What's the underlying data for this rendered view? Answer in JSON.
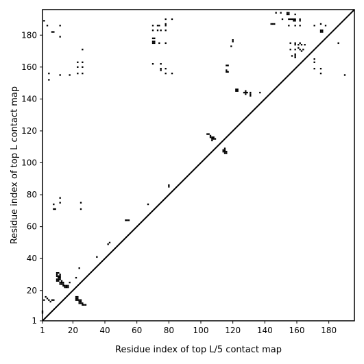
{
  "chart_data": {
    "type": "scatter",
    "title": "",
    "xlabel": "Residue index of top L/5 contact map",
    "ylabel": "Residue index of top L contact map",
    "xlim": [
      1,
      196
    ],
    "ylim": [
      1,
      196
    ],
    "xticks": [
      1,
      20,
      40,
      60,
      80,
      100,
      120,
      140,
      160,
      180
    ],
    "yticks": [
      1,
      20,
      40,
      60,
      80,
      100,
      120,
      140,
      160,
      180
    ],
    "grid": false,
    "diagonal": true,
    "series": [
      {
        "region": "top L/5 contacts (below diagonal)",
        "points": [
          [
            1,
            6
          ],
          [
            1,
            7
          ],
          [
            2,
            14
          ],
          [
            3,
            16
          ],
          [
            4,
            15
          ],
          [
            5,
            14
          ],
          [
            6,
            13
          ],
          [
            7,
            14
          ],
          [
            8,
            14
          ],
          [
            10,
            31
          ],
          [
            10,
            30
          ],
          [
            11,
            31
          ],
          [
            10,
            29
          ],
          [
            11,
            29
          ],
          [
            11,
            28
          ],
          [
            11,
            27
          ],
          [
            10,
            27
          ],
          [
            10,
            26
          ],
          [
            11,
            26
          ],
          [
            12,
            30
          ],
          [
            12,
            29
          ],
          [
            12,
            28
          ],
          [
            12,
            27
          ],
          [
            13,
            26
          ],
          [
            13,
            25
          ],
          [
            12,
            25
          ],
          [
            13,
            24
          ],
          [
            12,
            24
          ],
          [
            14,
            24
          ],
          [
            14,
            25
          ],
          [
            14,
            23
          ],
          [
            15,
            23
          ],
          [
            15,
            22
          ],
          [
            16,
            22
          ],
          [
            16,
            23
          ],
          [
            17,
            22
          ],
          [
            17,
            23
          ],
          [
            18,
            25
          ],
          [
            22,
            28
          ],
          [
            22,
            16
          ],
          [
            22,
            15
          ],
          [
            22,
            14
          ],
          [
            23,
            15
          ],
          [
            23,
            14
          ],
          [
            23,
            16
          ],
          [
            24,
            14
          ],
          [
            24,
            13
          ],
          [
            24,
            12
          ],
          [
            25,
            14
          ],
          [
            25,
            13
          ],
          [
            25,
            12
          ],
          [
            26,
            12
          ],
          [
            26,
            11
          ],
          [
            27,
            11
          ],
          [
            28,
            11
          ],
          [
            24,
            34
          ],
          [
            35,
            41
          ],
          [
            42,
            49
          ],
          [
            43,
            50
          ],
          [
            53,
            64
          ],
          [
            54,
            64
          ],
          [
            55,
            64
          ],
          [
            67,
            74
          ],
          [
            80,
            85
          ],
          [
            80,
            86
          ],
          [
            104,
            118
          ],
          [
            105,
            118
          ],
          [
            106,
            117
          ],
          [
            106,
            116
          ],
          [
            107,
            116
          ],
          [
            107,
            115
          ],
          [
            108,
            115
          ],
          [
            107,
            114
          ],
          [
            108,
            116
          ],
          [
            109,
            115
          ],
          [
            114,
            107
          ],
          [
            114,
            108
          ],
          [
            115,
            107
          ],
          [
            115,
            108
          ],
          [
            115,
            106
          ],
          [
            116,
            106
          ],
          [
            116,
            107
          ],
          [
            115,
            109
          ],
          [
            122,
            145
          ],
          [
            122,
            146
          ],
          [
            123,
            146
          ],
          [
            123,
            145
          ],
          [
            127,
            144
          ],
          [
            128,
            145
          ],
          [
            128,
            144
          ],
          [
            128,
            143
          ],
          [
            129,
            144
          ],
          [
            131,
            142
          ],
          [
            131,
            143
          ],
          [
            131,
            144
          ],
          [
            137,
            144
          ]
        ]
      },
      {
        "region": "top L contacts (above diagonal)",
        "points": [
          [
            2,
            189
          ],
          [
            4,
            186
          ],
          [
            7,
            182
          ],
          [
            8,
            182
          ],
          [
            5,
            156
          ],
          [
            5,
            152
          ],
          [
            12,
            186
          ],
          [
            12,
            179
          ],
          [
            12,
            155
          ],
          [
            18,
            155
          ],
          [
            8,
            74
          ],
          [
            8,
            71
          ],
          [
            9,
            71
          ],
          [
            12,
            78
          ],
          [
            12,
            75
          ],
          [
            25,
            75
          ],
          [
            25,
            71
          ],
          [
            23,
            163
          ],
          [
            23,
            160
          ],
          [
            23,
            156
          ],
          [
            26,
            171
          ],
          [
            26,
            163
          ],
          [
            26,
            160
          ],
          [
            26,
            156
          ],
          [
            70,
            186
          ],
          [
            70,
            183
          ],
          [
            70,
            178
          ],
          [
            70,
            176
          ],
          [
            70,
            175
          ],
          [
            71,
            178
          ],
          [
            71,
            176
          ],
          [
            71,
            175
          ],
          [
            70,
            162
          ],
          [
            73,
            186
          ],
          [
            73,
            183
          ],
          [
            74,
            186
          ],
          [
            75,
            183
          ],
          [
            74,
            175
          ],
          [
            75,
            162
          ],
          [
            75,
            159
          ],
          [
            75,
            158
          ],
          [
            78,
            190
          ],
          [
            78,
            187
          ],
          [
            78,
            186
          ],
          [
            78,
            183
          ],
          [
            78,
            175
          ],
          [
            78,
            159
          ],
          [
            78,
            156
          ],
          [
            82,
            190
          ],
          [
            82,
            156
          ],
          [
            116,
            161
          ],
          [
            117,
            161
          ],
          [
            116,
            158
          ],
          [
            116,
            157
          ],
          [
            117,
            157
          ],
          [
            119,
            173
          ],
          [
            120,
            177
          ],
          [
            120,
            176
          ],
          [
            144,
            187
          ],
          [
            145,
            187
          ],
          [
            146,
            187
          ],
          [
            147,
            194
          ],
          [
            150,
            194
          ],
          [
            151,
            190
          ],
          [
            154,
            194
          ],
          [
            154,
            193
          ],
          [
            155,
            194
          ],
          [
            155,
            193
          ],
          [
            155,
            190
          ],
          [
            156,
            190
          ],
          [
            155,
            186
          ],
          [
            156,
            175
          ],
          [
            156,
            171
          ],
          [
            157,
            167
          ],
          [
            157,
            190
          ],
          [
            158,
            190
          ],
          [
            158,
            189
          ],
          [
            159,
            190
          ],
          [
            159,
            189
          ],
          [
            159,
            193
          ],
          [
            159,
            175
          ],
          [
            159,
            174
          ],
          [
            159,
            171
          ],
          [
            159,
            168
          ],
          [
            159,
            167
          ],
          [
            159,
            166
          ],
          [
            159,
            186
          ],
          [
            161,
            172
          ],
          [
            161,
            174
          ],
          [
            162,
            175
          ],
          [
            162,
            171
          ],
          [
            162,
            189
          ],
          [
            162,
            190
          ],
          [
            162,
            186
          ],
          [
            163,
            174
          ],
          [
            163,
            170
          ],
          [
            164,
            171
          ],
          [
            165,
            174
          ],
          [
            171,
            186
          ],
          [
            171,
            165
          ],
          [
            171,
            163
          ],
          [
            171,
            159
          ],
          [
            175,
            187
          ],
          [
            175,
            183
          ],
          [
            175,
            182
          ],
          [
            176,
            183
          ],
          [
            176,
            182
          ],
          [
            175,
            159
          ],
          [
            175,
            156
          ],
          [
            178,
            186
          ],
          [
            186,
            175
          ],
          [
            190,
            155
          ]
        ]
      }
    ]
  }
}
